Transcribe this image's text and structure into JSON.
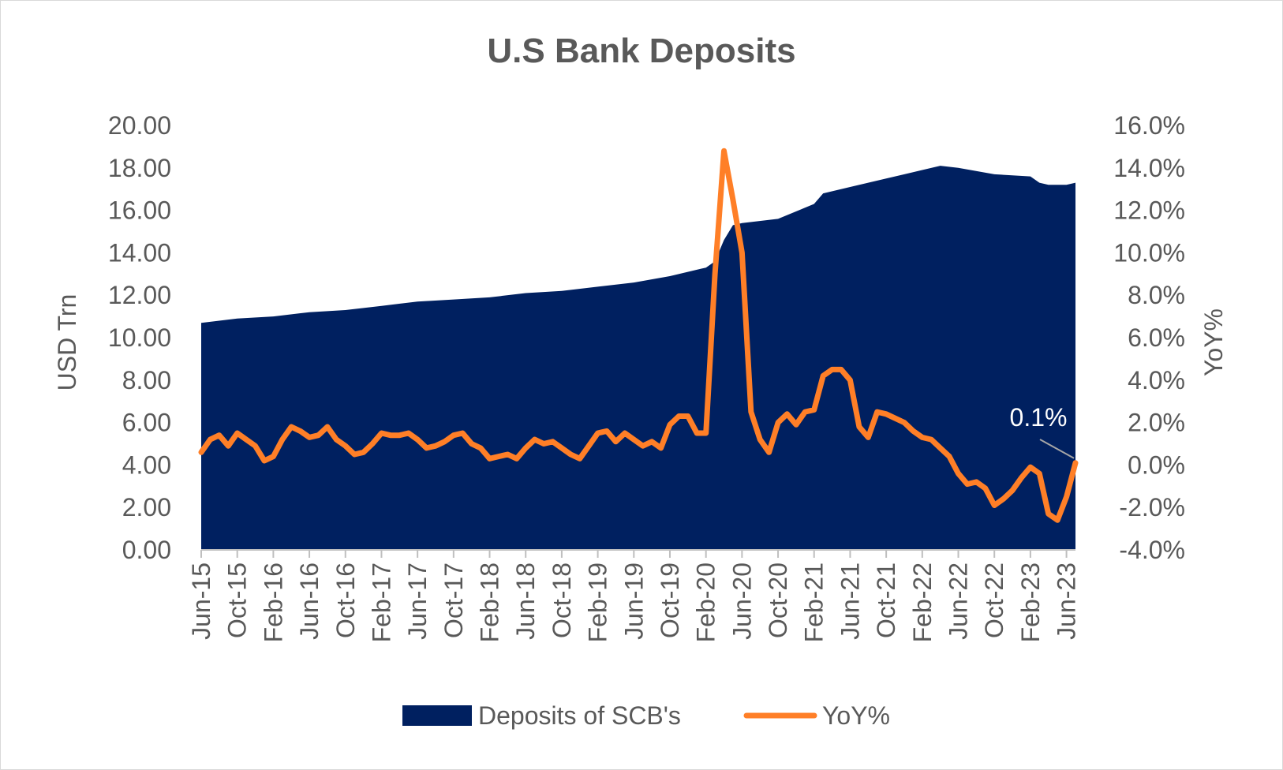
{
  "chart_data": {
    "type": "area",
    "title": "U.S Bank Deposits",
    "ylabel": "USD Trn",
    "ylabel_right": "YoY%",
    "ylim": [
      0,
      20
    ],
    "ylim_right": [
      -4.0,
      16.0
    ],
    "y_ticks": [
      "0.00",
      "2.00",
      "4.00",
      "6.00",
      "8.00",
      "10.00",
      "12.00",
      "14.00",
      "16.00",
      "18.00",
      "20.00"
    ],
    "y_ticks_right": [
      "-4.0%",
      "-2.0%",
      "0.0%",
      "2.0%",
      "4.0%",
      "6.0%",
      "8.0%",
      "10.0%",
      "12.0%",
      "14.0%",
      "16.0%"
    ],
    "x_tick_labels": [
      "Jun-15",
      "Oct-15",
      "Feb-16",
      "Jun-16",
      "Oct-16",
      "Feb-17",
      "Jun-17",
      "Oct-17",
      "Feb-18",
      "Jun-18",
      "Oct-18",
      "Feb-19",
      "Jun-19",
      "Oct-19",
      "Feb-20",
      "Jun-20",
      "Oct-20",
      "Feb-21",
      "Jun-21",
      "Oct-21",
      "Feb-22",
      "Jun-22",
      "Oct-22",
      "Feb-23",
      "Jun-23"
    ],
    "annotation": "0.1%",
    "legend_position": "bottom",
    "colors": {
      "deposits": "#002060",
      "yoy": "#FF7F27"
    },
    "series": [
      {
        "name": "Deposits of SCB's",
        "type": "area",
        "axis": "left",
        "x": [
          "2015-06",
          "2015-10",
          "2016-02",
          "2016-06",
          "2016-10",
          "2017-02",
          "2017-06",
          "2017-10",
          "2018-02",
          "2018-06",
          "2018-10",
          "2019-02",
          "2019-06",
          "2019-10",
          "2020-02",
          "2020-03",
          "2020-04",
          "2020-05",
          "2020-06",
          "2020-10",
          "2021-02",
          "2021-03",
          "2021-06",
          "2021-10",
          "2022-02",
          "2022-04",
          "2022-06",
          "2022-10",
          "2023-02",
          "2023-03",
          "2023-04",
          "2023-06",
          "2023-07"
        ],
        "values": [
          10.7,
          10.9,
          11.0,
          11.2,
          11.3,
          11.5,
          11.7,
          11.8,
          11.9,
          12.1,
          12.2,
          12.4,
          12.6,
          12.9,
          13.3,
          13.6,
          14.6,
          15.3,
          15.4,
          15.6,
          16.3,
          16.8,
          17.1,
          17.5,
          17.9,
          18.1,
          18.0,
          17.7,
          17.6,
          17.3,
          17.2,
          17.2,
          17.3
        ]
      },
      {
        "name": "YoY%",
        "type": "line",
        "axis": "right",
        "x": [
          "2015-06",
          "2015-07",
          "2015-08",
          "2015-09",
          "2015-10",
          "2015-11",
          "2015-12",
          "2016-01",
          "2016-02",
          "2016-03",
          "2016-04",
          "2016-05",
          "2016-06",
          "2016-07",
          "2016-08",
          "2016-09",
          "2016-10",
          "2016-11",
          "2016-12",
          "2017-01",
          "2017-02",
          "2017-03",
          "2017-04",
          "2017-05",
          "2017-06",
          "2017-07",
          "2017-08",
          "2017-09",
          "2017-10",
          "2017-11",
          "2017-12",
          "2018-01",
          "2018-02",
          "2018-03",
          "2018-04",
          "2018-05",
          "2018-06",
          "2018-07",
          "2018-08",
          "2018-09",
          "2018-10",
          "2018-11",
          "2018-12",
          "2019-01",
          "2019-02",
          "2019-03",
          "2019-04",
          "2019-05",
          "2019-06",
          "2019-07",
          "2019-08",
          "2019-09",
          "2019-10",
          "2019-11",
          "2019-12",
          "2020-01",
          "2020-02",
          "2020-03",
          "2020-04",
          "2020-05",
          "2020-06",
          "2020-07",
          "2020-08",
          "2020-09",
          "2020-10",
          "2020-11",
          "2020-12",
          "2021-01",
          "2021-02",
          "2021-03",
          "2021-04",
          "2021-05",
          "2021-06",
          "2021-07",
          "2021-08",
          "2021-09",
          "2021-10",
          "2021-11",
          "2021-12",
          "2022-01",
          "2022-02",
          "2022-03",
          "2022-04",
          "2022-05",
          "2022-06",
          "2022-07",
          "2022-08",
          "2022-09",
          "2022-10",
          "2022-11",
          "2022-12",
          "2023-01",
          "2023-02",
          "2023-03",
          "2023-04",
          "2023-05",
          "2023-06",
          "2023-07"
        ],
        "values": [
          0.6,
          1.2,
          1.4,
          0.9,
          1.5,
          1.2,
          0.9,
          0.2,
          0.4,
          1.2,
          1.8,
          1.6,
          1.3,
          1.4,
          1.8,
          1.2,
          0.9,
          0.5,
          0.6,
          1.0,
          1.5,
          1.4,
          1.4,
          1.5,
          1.2,
          0.8,
          0.9,
          1.1,
          1.4,
          1.5,
          1.0,
          0.8,
          0.3,
          0.4,
          0.5,
          0.3,
          0.8,
          1.2,
          1.0,
          1.1,
          0.8,
          0.5,
          0.3,
          0.9,
          1.5,
          1.6,
          1.1,
          1.5,
          1.2,
          0.9,
          1.1,
          0.8,
          1.9,
          2.3,
          2.3,
          1.5,
          1.5,
          9.0,
          14.8,
          12.5,
          10.0,
          2.5,
          1.2,
          0.6,
          2.0,
          2.4,
          1.9,
          2.5,
          2.6,
          4.2,
          4.5,
          4.5,
          4.0,
          1.8,
          1.3,
          2.5,
          2.4,
          2.2,
          2.0,
          1.6,
          1.3,
          1.2,
          0.8,
          0.4,
          -0.4,
          -0.9,
          -0.8,
          -1.1,
          -1.9,
          -1.6,
          -1.2,
          -0.6,
          -0.1,
          -0.4,
          -2.3,
          -2.6,
          -1.5,
          0.1
        ]
      }
    ]
  }
}
